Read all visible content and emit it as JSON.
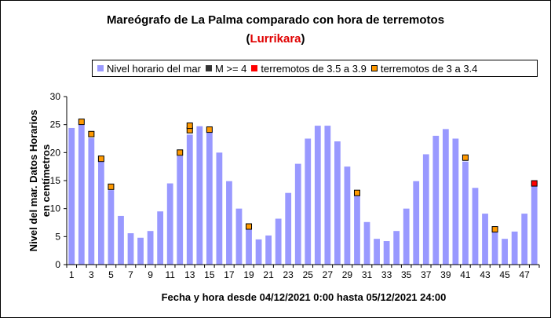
{
  "chart_data": {
    "type": "bar",
    "title": "Mareógrafo de La Palma comparado con hora de terremotos",
    "subtitle_open": "(",
    "subtitle_source": "Lurrikara",
    "subtitle_close": ")",
    "xlabel": "Fecha y hora desde 04/12/2021 0:00 hasta 05/12/2021 24:00",
    "ylabel_line1": "Nivel del mar. Datos Horarios",
    "ylabel_line2": "en centímetros",
    "ylim": [
      0,
      30
    ],
    "yticks": [
      "0",
      "5",
      "10",
      "15",
      "20",
      "25",
      "30"
    ],
    "xtick_labels": [
      "1",
      "3",
      "5",
      "7",
      "9",
      "11",
      "13",
      "15",
      "17",
      "19",
      "21",
      "23",
      "25",
      "27",
      "29",
      "31",
      "33",
      "35",
      "37",
      "39",
      "41",
      "43",
      "45",
      "47"
    ],
    "categories": [
      1,
      2,
      3,
      4,
      5,
      6,
      7,
      8,
      9,
      10,
      11,
      12,
      13,
      14,
      15,
      16,
      17,
      18,
      19,
      20,
      21,
      22,
      23,
      24,
      25,
      26,
      27,
      28,
      29,
      30,
      31,
      32,
      33,
      34,
      35,
      36,
      37,
      38,
      39,
      40,
      41,
      42,
      43,
      44,
      45,
      46,
      47,
      48
    ],
    "series": [
      {
        "name": "Nivel horario del mar",
        "color": "#9999ff",
        "values": [
          24.4,
          25.0,
          22.6,
          18.4,
          13.3,
          8.7,
          5.6,
          4.8,
          6.0,
          9.5,
          14.5,
          19.4,
          23.2,
          24.7,
          24.2,
          20.0,
          14.9,
          10.0,
          6.3,
          4.5,
          5.2,
          8.2,
          12.8,
          18.0,
          22.5,
          24.8,
          24.8,
          22.0,
          17.5,
          12.4,
          7.6,
          4.6,
          4.2,
          6.0,
          10.0,
          14.9,
          19.7,
          23.0,
          24.2,
          22.5,
          18.4,
          13.7,
          9.1,
          5.8,
          4.6,
          5.9,
          9.1,
          14.0
        ]
      },
      {
        "name": "M >= 4",
        "color": "#333333",
        "markers": []
      },
      {
        "name": "terremotos de 3.5 a 3.9",
        "color": "#ff0000",
        "markers": [
          [
            48,
            14.5
          ]
        ]
      },
      {
        "name": "terremotos de 3 a 3.4",
        "color": "#ff9900",
        "markers": [
          [
            2,
            25.5
          ],
          [
            3,
            23.3
          ],
          [
            4,
            18.9
          ],
          [
            5,
            13.9
          ],
          [
            12,
            20.0
          ],
          [
            13,
            24.0
          ],
          [
            13,
            24.8
          ],
          [
            15,
            24.1
          ],
          [
            19,
            6.8
          ],
          [
            30,
            12.8
          ],
          [
            41,
            19.1
          ],
          [
            44,
            6.3
          ]
        ]
      }
    ],
    "legend_position": "top",
    "grid": false
  }
}
